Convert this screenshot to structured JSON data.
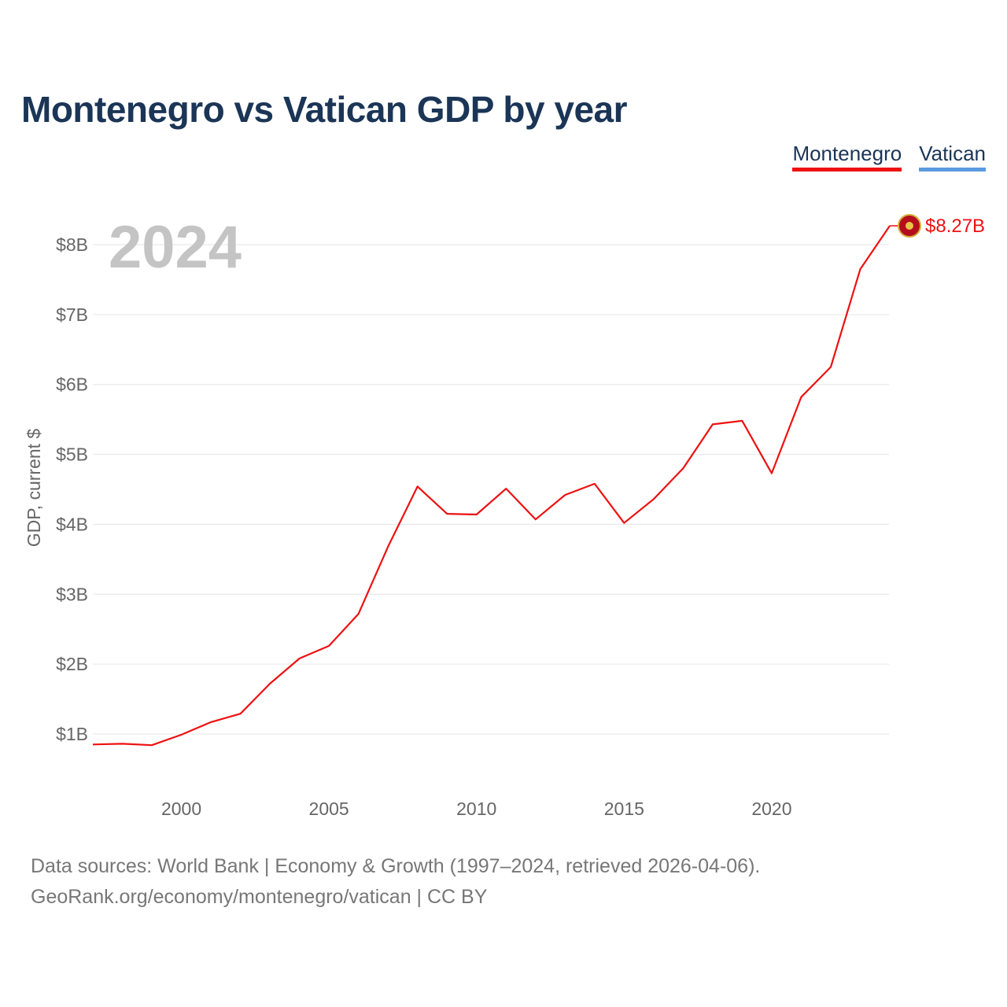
{
  "title": "Montenegro vs Vatican GDP by year",
  "legend": [
    {
      "name": "Montenegro",
      "color": "#ee1111"
    },
    {
      "name": "Vatican",
      "color": "#5b9be0"
    }
  ],
  "year_watermark": "2024",
  "end_label": "$8.27B",
  "footer": {
    "line1": "Data sources: World Bank | Economy & Growth (1997–2024, retrieved 2026-04-06).",
    "line2": "GeoRank.org/economy/montenegro/vatican | CC BY"
  },
  "chart_data": {
    "type": "line",
    "title": "Montenegro vs Vatican GDP by year",
    "xlabel": "",
    "ylabel": "GDP, current $",
    "xlim": [
      1997,
      2024
    ],
    "ylim": [
      0.2,
      8.9
    ],
    "y_ticks": [
      1,
      2,
      3,
      4,
      5,
      6,
      7,
      8
    ],
    "y_tick_labels": [
      "$1B",
      "$2B",
      "$3B",
      "$4B",
      "$5B",
      "$6B",
      "$7B",
      "$8B"
    ],
    "x_ticks": [
      2000,
      2005,
      2010,
      2015,
      2020
    ],
    "x_tick_labels": [
      "2000",
      "2005",
      "2010",
      "2015",
      "2020"
    ],
    "grid": true,
    "legend_position": "top-right",
    "series": [
      {
        "name": "Montenegro",
        "color": "#ee1111",
        "x": [
          1997,
          1998,
          1999,
          2000,
          2001,
          2002,
          2003,
          2004,
          2005,
          2006,
          2007,
          2008,
          2009,
          2010,
          2011,
          2012,
          2013,
          2014,
          2015,
          2016,
          2017,
          2018,
          2019,
          2020,
          2021,
          2022,
          2023,
          2024
        ],
        "values": [
          0.85,
          0.86,
          0.84,
          0.99,
          1.17,
          1.29,
          1.72,
          2.08,
          2.26,
          2.72,
          3.68,
          4.54,
          4.15,
          4.14,
          4.51,
          4.07,
          4.42,
          4.58,
          4.02,
          4.36,
          4.8,
          5.43,
          5.48,
          4.73,
          5.82,
          6.25,
          7.65,
          8.27
        ]
      },
      {
        "name": "Vatican",
        "color": "#5b9be0",
        "x": [],
        "values": []
      }
    ]
  }
}
